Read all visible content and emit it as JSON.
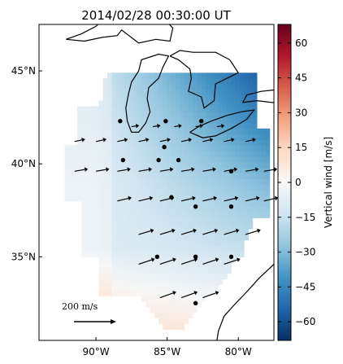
{
  "title": "2014/02/28 00:30:00 UT",
  "axes": {
    "lon_labels": [
      "90°W",
      "85°W",
      "80°W"
    ],
    "lat_labels": [
      "45°N",
      "40°N",
      "35°N"
    ]
  },
  "colorbar": {
    "label": "Vertical wind [m/s]",
    "ticks": [
      "60",
      "45",
      "30",
      "15",
      "0",
      "−15",
      "−30",
      "−45",
      "−60"
    ],
    "cmap": [
      "#67001f",
      "#b2182b",
      "#d6604d",
      "#f4a582",
      "#fddbc7",
      "#f7f7f7",
      "#d1e5f0",
      "#92c5de",
      "#4393c3",
      "#2166ac",
      "#053061"
    ]
  },
  "scale_arrow": {
    "label": "200 m/s"
  },
  "chart_data": {
    "type": "heatmap",
    "title": "2014/02/28 00:30:00 UT",
    "colorbar_label": "Vertical wind [m/s]",
    "vlim": [
      -68,
      68
    ],
    "lon_range": [
      -94,
      -77.5
    ],
    "lat_range": [
      30.5,
      47.5
    ],
    "stations": [
      {
        "lon": -88.3,
        "lat": 42.3
      },
      {
        "lon": -85.1,
        "lat": 42.3
      },
      {
        "lon": -82.6,
        "lat": 42.3
      },
      {
        "lon": -85.2,
        "lat": 40.9
      },
      {
        "lon": -88.1,
        "lat": 40.2
      },
      {
        "lon": -85.6,
        "lat": 40.2
      },
      {
        "lon": -84.2,
        "lat": 40.2
      },
      {
        "lon": -80.5,
        "lat": 39.6
      },
      {
        "lon": -84.7,
        "lat": 38.2
      },
      {
        "lon": -83.0,
        "lat": 37.7
      },
      {
        "lon": -80.5,
        "lat": 37.7
      },
      {
        "lon": -85.7,
        "lat": 35.0
      },
      {
        "lon": -83.0,
        "lat": 35.0
      },
      {
        "lon": -80.5,
        "lat": 35.0
      },
      {
        "lon": -83.0,
        "lat": 32.5
      }
    ],
    "vectors": [
      {
        "lat": 42.0,
        "lons": [
          -87.5,
          -86.0,
          -84.5,
          -83.0,
          -81.5
        ],
        "u": 40,
        "v": 6
      },
      {
        "lat": 41.2,
        "lons": [
          -91.5,
          -90.0,
          -88.5,
          -87.0,
          -85.5,
          -84.0,
          -82.5,
          -81.0,
          -79.5
        ],
        "u": 55,
        "v": 12
      },
      {
        "lat": 39.6,
        "lons": [
          -91.5,
          -90.0,
          -88.5,
          -87.0,
          -85.5,
          -84.0,
          -82.5,
          -81.0,
          -79.5,
          -78.2
        ],
        "u": 70,
        "v": 12
      },
      {
        "lat": 38.0,
        "lons": [
          -88.5,
          -87.0,
          -85.5,
          -84.0,
          -82.5,
          -81.0,
          -79.5,
          -78.2
        ],
        "u": 75,
        "v": 18
      },
      {
        "lat": 36.2,
        "lons": [
          -87.0,
          -85.5,
          -84.0,
          -82.5,
          -81.0,
          -79.5
        ],
        "u": 80,
        "v": 24
      },
      {
        "lat": 34.6,
        "lons": [
          -87.0,
          -85.5,
          -84.0,
          -82.5,
          -81.0
        ],
        "u": 85,
        "v": 28
      },
      {
        "lat": 32.8,
        "lons": [
          -85.5,
          -84.0,
          -82.5
        ],
        "u": 85,
        "v": 30
      }
    ],
    "scale_vector": {
      "u": 200,
      "label": "200 m/s"
    }
  }
}
